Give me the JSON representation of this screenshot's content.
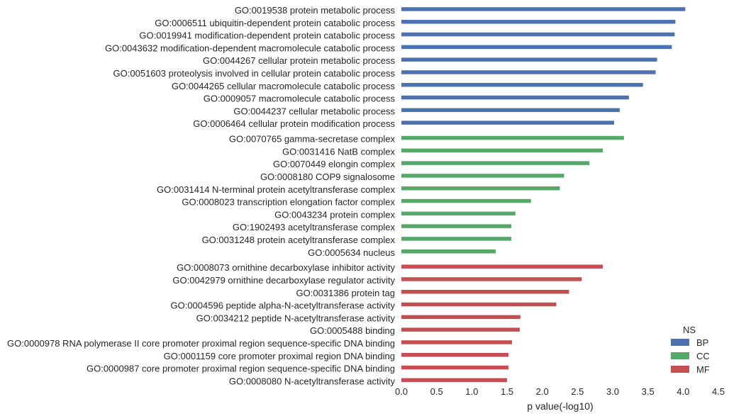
{
  "chart_data": {
    "type": "bar",
    "orientation": "horizontal",
    "xlabel": "p value(-log10)",
    "xlim": [
      0.0,
      4.5
    ],
    "xticks": [
      "0.0",
      "0.5",
      "1.0",
      "1.5",
      "2.0",
      "2.5",
      "3.0",
      "3.5",
      "4.0",
      "4.5"
    ],
    "grid": false,
    "legend": {
      "title": "NS",
      "placement": "bottom-right",
      "entries": [
        {
          "name": "BP",
          "color": "#4c72b0"
        },
        {
          "name": "CC",
          "color": "#55a868"
        },
        {
          "name": "MF",
          "color": "#c44e52"
        }
      ]
    },
    "bars": [
      {
        "category": "GO:0019538 protein metabolic process",
        "value": 4.03,
        "ns": "BP"
      },
      {
        "category": "GO:0006511 ubiquitin-dependent protein catabolic process",
        "value": 3.89,
        "ns": "BP"
      },
      {
        "category": "GO:0019941 modification-dependent protein catabolic process",
        "value": 3.88,
        "ns": "BP"
      },
      {
        "category": "GO:0043632 modification-dependent macromolecule catabolic process",
        "value": 3.84,
        "ns": "BP"
      },
      {
        "category": "GO:0044267 cellular protein metabolic process",
        "value": 3.63,
        "ns": "BP"
      },
      {
        "category": "GO:0051603 proteolysis involved in cellular protein catabolic process",
        "value": 3.61,
        "ns": "BP"
      },
      {
        "category": "GO:0044265 cellular macromolecule catabolic process",
        "value": 3.43,
        "ns": "BP"
      },
      {
        "category": "GO:0009057 macromolecule catabolic process",
        "value": 3.23,
        "ns": "BP"
      },
      {
        "category": "GO:0044237 cellular metabolic process",
        "value": 3.1,
        "ns": "BP"
      },
      {
        "category": "GO:0006464 cellular protein modification process",
        "value": 3.02,
        "ns": "BP"
      },
      {
        "category": "GO:0070765 gamma-secretase complex",
        "value": 3.16,
        "ns": "CC"
      },
      {
        "category": "GO:0031416 NatB complex",
        "value": 2.86,
        "ns": "CC"
      },
      {
        "category": "GO:0070449 elongin complex",
        "value": 2.67,
        "ns": "CC"
      },
      {
        "category": "GO:0008180 COP9 signalosome",
        "value": 2.31,
        "ns": "CC"
      },
      {
        "category": "GO:0031414 N-terminal protein acetyltransferase complex",
        "value": 2.25,
        "ns": "CC"
      },
      {
        "category": "GO:0008023 transcription elongation factor complex",
        "value": 1.84,
        "ns": "CC"
      },
      {
        "category": "GO:0043234 protein complex",
        "value": 1.62,
        "ns": "CC"
      },
      {
        "category": "GO:1902493 acetyltransferase complex",
        "value": 1.56,
        "ns": "CC"
      },
      {
        "category": "GO:0031248 protein acetyltransferase complex",
        "value": 1.56,
        "ns": "CC"
      },
      {
        "category": "GO:0005634 nucleus",
        "value": 1.34,
        "ns": "CC"
      },
      {
        "category": "GO:0008073 ornithine decarboxylase inhibitor activity",
        "value": 2.86,
        "ns": "MF"
      },
      {
        "category": "GO:0042979 ornithine decarboxylase regulator activity",
        "value": 2.56,
        "ns": "MF"
      },
      {
        "category": "GO:0031386 protein tag",
        "value": 2.38,
        "ns": "MF"
      },
      {
        "category": "GO:0004596 peptide alpha-N-acetyltransferase activity",
        "value": 2.2,
        "ns": "MF"
      },
      {
        "category": "GO:0034212 peptide N-acetyltransferase activity",
        "value": 1.69,
        "ns": "MF"
      },
      {
        "category": "GO:0005488 binding",
        "value": 1.68,
        "ns": "MF"
      },
      {
        "category": "GO:0000978 RNA polymerase II core promoter proximal region sequence-specific DNA binding",
        "value": 1.57,
        "ns": "MF"
      },
      {
        "category": "GO:0001159 core promoter proximal region DNA binding",
        "value": 1.52,
        "ns": "MF"
      },
      {
        "category": "GO:0000987 core promoter proximal region sequence-specific DNA binding",
        "value": 1.52,
        "ns": "MF"
      },
      {
        "category": "GO:0008080 N-acetyltransferase activity",
        "value": 1.5,
        "ns": "MF"
      }
    ]
  }
}
